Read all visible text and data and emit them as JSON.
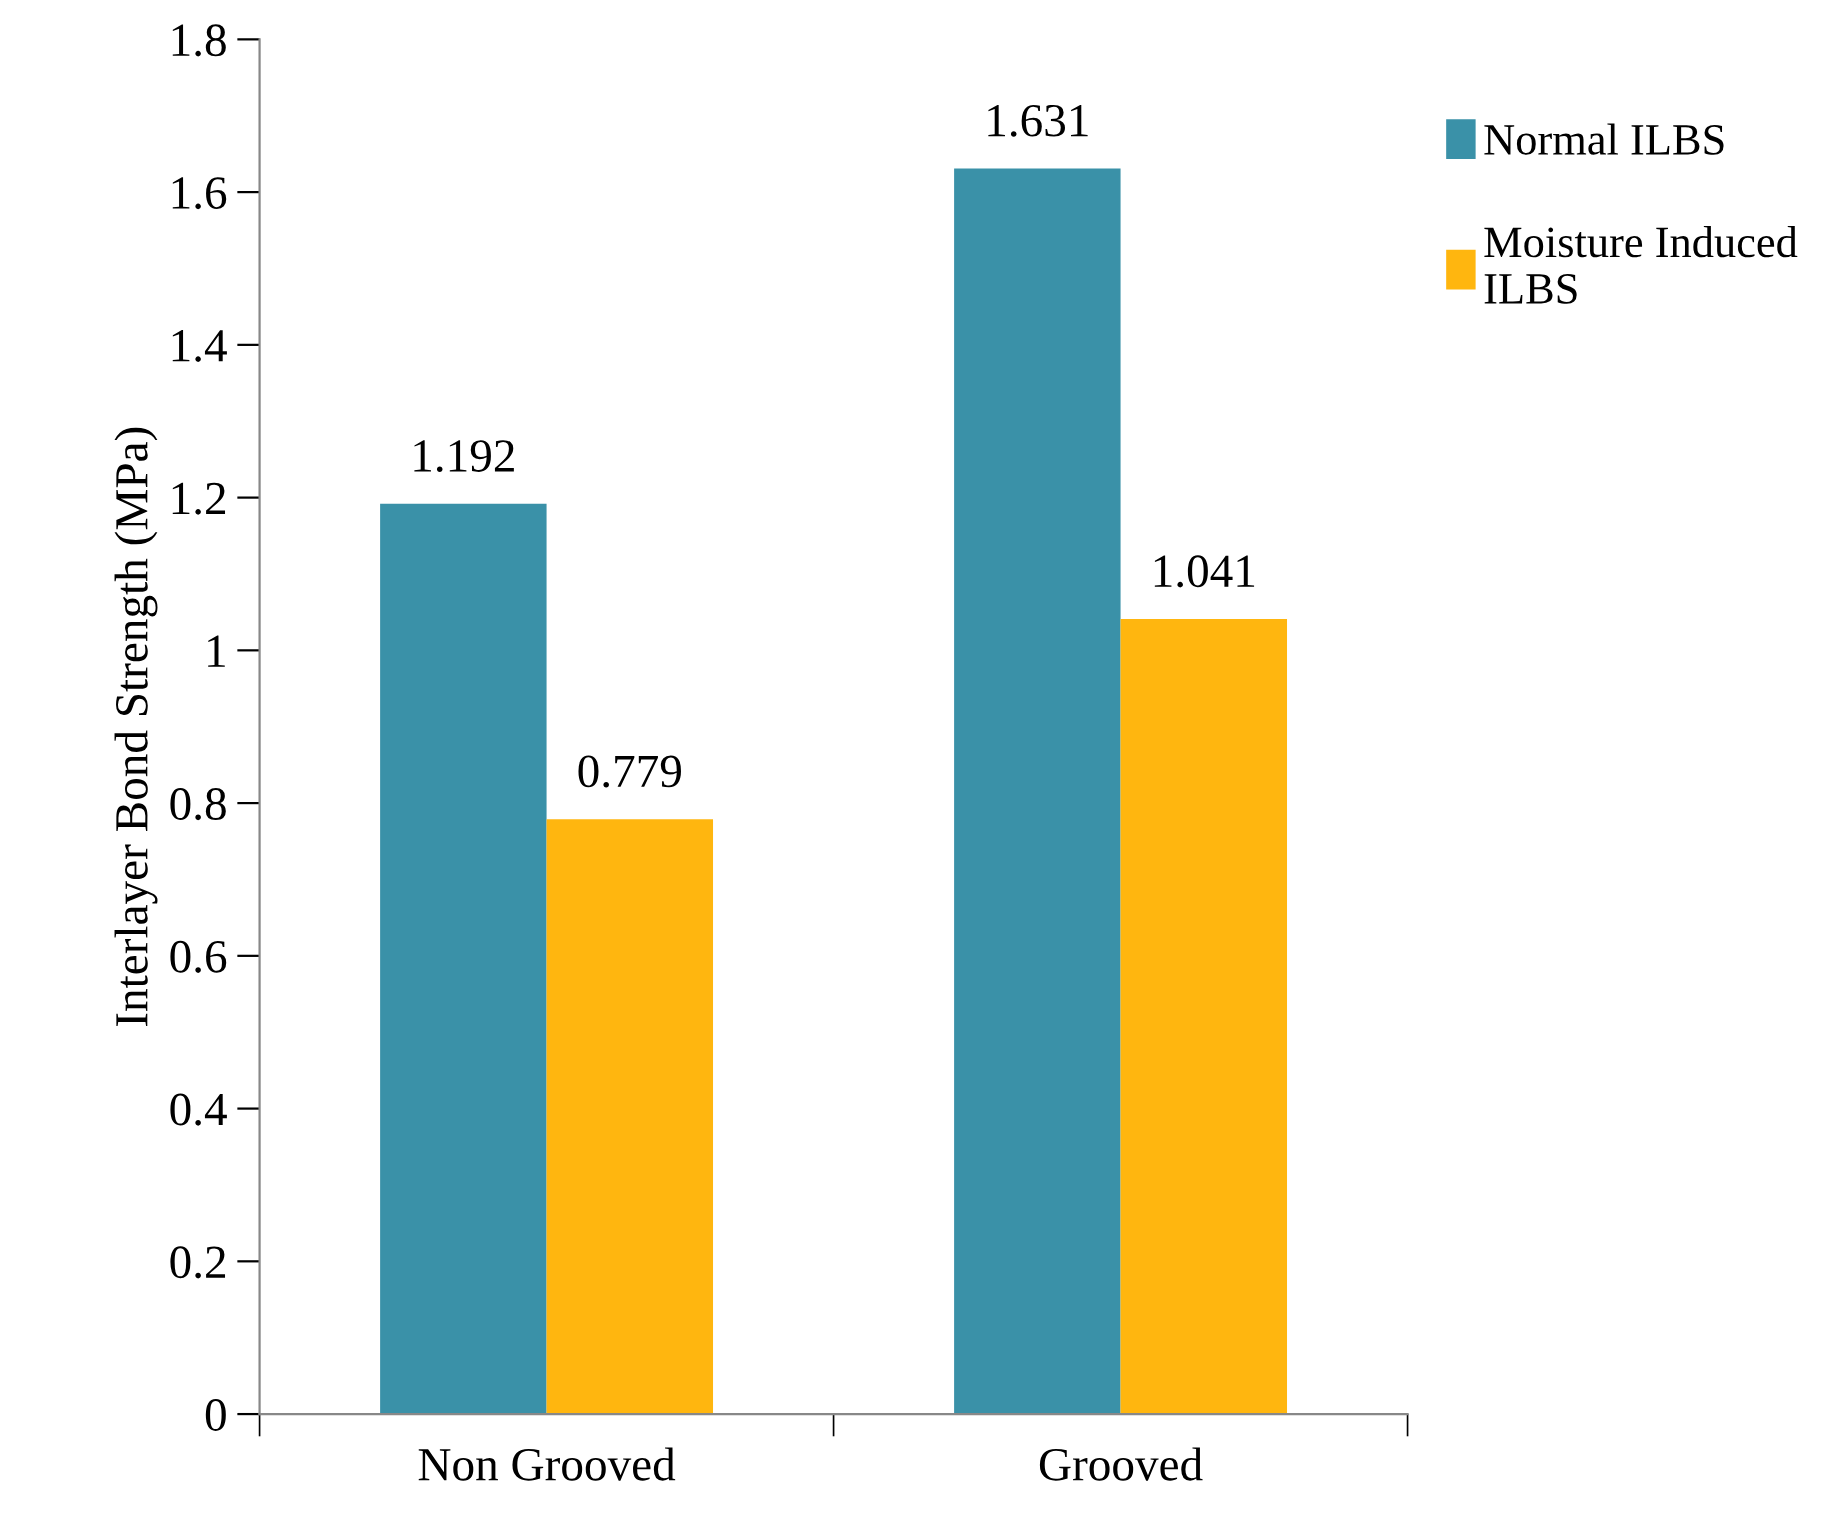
{
  "chart_data": {
    "type": "bar",
    "ylabel": "Interlayer Bond Strength (MPa)",
    "categories": [
      "Non Grooved",
      "Grooved"
    ],
    "series": [
      {
        "name": "Normal ILBS",
        "color": "#3a91a8",
        "values": [
          1.192,
          1.631
        ]
      },
      {
        "name": "Moisture Induced\nILBS",
        "color": "#ffb60f",
        "values": [
          0.779,
          1.041
        ]
      }
    ],
    "ylim": [
      0,
      1.8
    ],
    "yticks": [
      0,
      0.2,
      0.4,
      0.6,
      0.8,
      1,
      1.2,
      1.4,
      1.6,
      1.8
    ],
    "data_labels": true,
    "grid": false,
    "legend": "right"
  }
}
